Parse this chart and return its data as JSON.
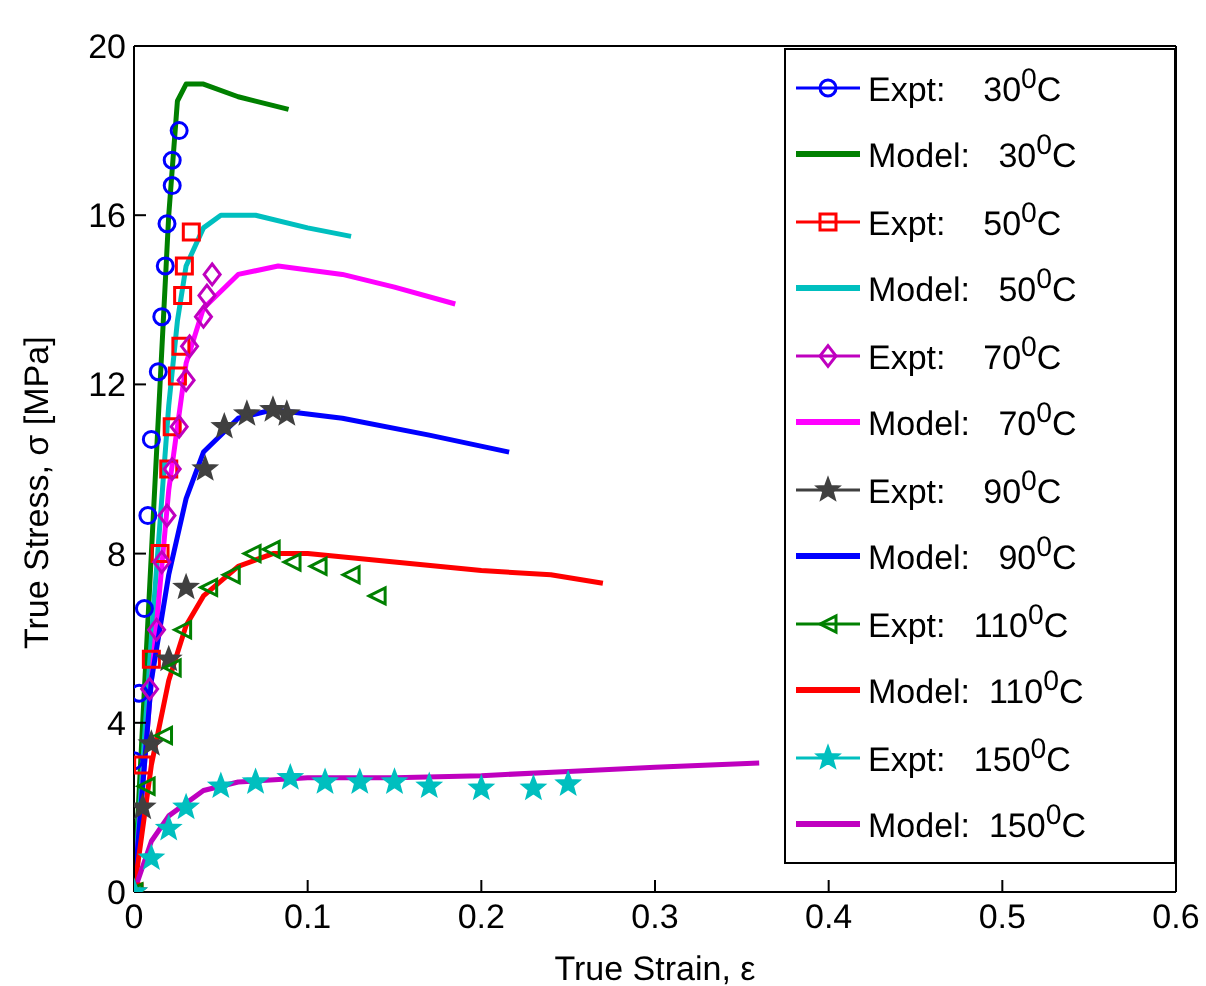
{
  "chart_data": {
    "type": "line",
    "xlabel": "True Strain, ε",
    "ylabel": "True  Stress, σ [MPa]",
    "xlim": [
      0,
      0.6
    ],
    "xticks": [
      0,
      0.1,
      0.2,
      0.3,
      0.4,
      0.5,
      0.6
    ],
    "ylim": [
      0,
      20
    ],
    "yticks": [
      0,
      4,
      8,
      12,
      16,
      20
    ],
    "grid": false,
    "legend": "top right",
    "line_style": "solid",
    "series": [
      {
        "name": "Expt:    30$^{0}$C",
        "type": "scatter",
        "marker": "circle",
        "color": "#0000ff",
        "x": [
          0.0,
          0.003,
          0.006,
          0.008,
          0.01,
          0.014,
          0.016,
          0.018,
          0.019,
          0.022,
          0.022,
          0.026
        ],
        "values": [
          3.1,
          4.7,
          6.7,
          8.9,
          10.7,
          12.3,
          13.6,
          14.8,
          15.8,
          16.7,
          17.3,
          18.0
        ]
      },
      {
        "name": "Model:   30$^{0}$C",
        "marker": "none",
        "color": "#008000",
        "x": [
          0,
          0.005,
          0.01,
          0.015,
          0.02,
          0.025,
          0.03,
          0.04,
          0.06,
          0.089
        ],
        "values": [
          0,
          4,
          8,
          12,
          16,
          18.7,
          19.1,
          19.1,
          18.8,
          18.5
        ]
      },
      {
        "name": "Expt:    50$^{0}$C",
        "type": "scatter",
        "marker": "square",
        "color": "#ff0000",
        "x": [
          0,
          0.005,
          0.01,
          0.015,
          0.02,
          0.022,
          0.025,
          0.027,
          0.028,
          0.029,
          0.033
        ],
        "values": [
          0,
          3,
          5.5,
          8,
          10.0,
          11.0,
          12.2,
          12.9,
          14.1,
          14.8,
          15.6
        ]
      },
      {
        "name": "Model:   50$^{0}$C",
        "marker": "none",
        "color": "#00bfbf",
        "x": [
          0,
          0.01,
          0.02,
          0.025,
          0.03,
          0.04,
          0.05,
          0.07,
          0.1,
          0.125
        ],
        "values": [
          0,
          6,
          11.5,
          13.5,
          14.8,
          15.7,
          16,
          16,
          15.7,
          15.5
        ]
      },
      {
        "name": "Expt:    70$^{0}$C",
        "type": "scatter",
        "marker": "diamond",
        "color": "#bf00bf",
        "x": [
          0.009,
          0.013,
          0.016,
          0.019,
          0.022,
          0.026,
          0.03,
          0.032,
          0.04,
          0.042,
          0.045
        ],
        "values": [
          4.8,
          6.2,
          7.8,
          8.9,
          10.0,
          11.0,
          12.1,
          12.9,
          13.6,
          14.1,
          14.6
        ]
      },
      {
        "name": "Model:   70$^{0}$C",
        "marker": "none",
        "color": "#ff00ff",
        "x": [
          0,
          0.01,
          0.02,
          0.03,
          0.04,
          0.06,
          0.083,
          0.12,
          0.15,
          0.185
        ],
        "values": [
          0,
          5,
          9.5,
          12.5,
          13.8,
          14.6,
          14.8,
          14.6,
          14.3,
          13.9
        ]
      },
      {
        "name": "Expt:    90$^{0}$C",
        "type": "scatter",
        "marker": "star",
        "color": "#404040",
        "x": [
          0,
          0.005,
          0.01,
          0.02,
          0.03,
          0.041,
          0.052,
          0.065,
          0.08,
          0.088
        ],
        "values": [
          0,
          2,
          3.5,
          5.5,
          7.2,
          10,
          11,
          11.3,
          11.4,
          11.3
        ]
      },
      {
        "name": "Model:   90$^{0}$C",
        "marker": "none",
        "color": "#0000ff",
        "x": [
          0,
          0.01,
          0.02,
          0.03,
          0.04,
          0.06,
          0.08,
          0.12,
          0.17,
          0.216
        ],
        "values": [
          0,
          5,
          7.5,
          9.3,
          10.4,
          11.2,
          11.4,
          11.2,
          10.8,
          10.4
        ]
      },
      {
        "name": "Expt:   110$^{0}$C",
        "type": "scatter",
        "marker": "triangle",
        "color": "#008000",
        "x": [
          0,
          0.007,
          0.017,
          0.022,
          0.028,
          0.043,
          0.056,
          0.068,
          0.079,
          0.091,
          0.106,
          0.125,
          0.14
        ],
        "values": [
          0,
          2.5,
          3.7,
          5.3,
          6.2,
          7.2,
          7.5,
          8.0,
          8.1,
          7.8,
          7.7,
          7.5,
          7.0
        ]
      },
      {
        "name": "Model:  110$^{0}$C",
        "marker": "none",
        "color": "#ff0000",
        "x": [
          0,
          0.01,
          0.02,
          0.03,
          0.04,
          0.06,
          0.08,
          0.1,
          0.15,
          0.2,
          0.24,
          0.27
        ],
        "values": [
          0,
          3,
          5,
          6.3,
          7,
          7.7,
          8.0,
          8.0,
          7.8,
          7.6,
          7.5,
          7.3
        ]
      },
      {
        "name": "Expt:   150$^{0}$C",
        "type": "scatter",
        "marker": "star",
        "color": "#00bfbf",
        "x": [
          0,
          0.01,
          0.02,
          0.03,
          0.05,
          0.07,
          0.09,
          0.11,
          0.13,
          0.15,
          0.17,
          0.2,
          0.23,
          0.25
        ],
        "values": [
          0,
          0.8,
          1.5,
          2.0,
          2.5,
          2.6,
          2.7,
          2.6,
          2.6,
          2.6,
          2.5,
          2.45,
          2.45,
          2.55
        ]
      },
      {
        "name": "Model:  150$^{0}$C",
        "marker": "none",
        "color": "#bf00bf",
        "x": [
          0,
          0.01,
          0.02,
          0.04,
          0.06,
          0.1,
          0.15,
          0.2,
          0.25,
          0.3,
          0.36
        ],
        "values": [
          0,
          1.2,
          1.8,
          2.4,
          2.6,
          2.7,
          2.7,
          2.75,
          2.85,
          2.95,
          3.05
        ]
      }
    ]
  }
}
